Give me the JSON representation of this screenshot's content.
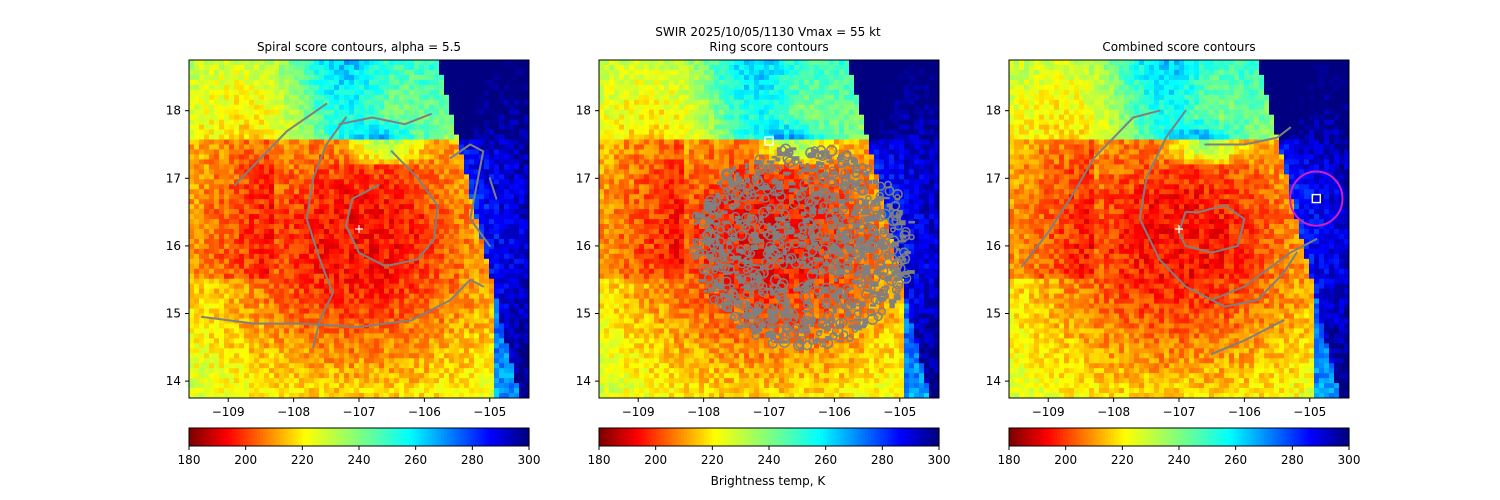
{
  "figure": {
    "suptitle_line1": "SWIR  2025/10/05/1130    Vmax = 55 kt"
  },
  "colorbar": {
    "label": "Brightness temp, K",
    "vmin": 180,
    "vmax": 300,
    "ticks": [
      180,
      200,
      220,
      240,
      260,
      280,
      300
    ],
    "colormap": "jet_r"
  },
  "chart_data": [
    {
      "type": "heatmap",
      "title": "Spiral score contours, alpha =  5.5",
      "xlim": [
        -109.6,
        -104.4
      ],
      "ylim": [
        13.75,
        18.75
      ],
      "xticks": [
        -109,
        -108,
        -107,
        -106,
        -105
      ],
      "yticks": [
        14,
        15,
        16,
        17,
        18
      ],
      "grid": false,
      "center_marker": {
        "symbol": "+",
        "lon": -107.0,
        "lat": 16.25,
        "color": "#ffffff"
      },
      "contours": [
        {
          "color": "#808080",
          "points": [
            [
              -108.9,
              16.9
            ],
            [
              -108.5,
              17.3
            ],
            [
              -108.1,
              17.7
            ],
            [
              -107.8,
              17.9
            ],
            [
              -107.5,
              18.1
            ]
          ]
        },
        {
          "color": "#808080",
          "points": [
            [
              -107.2,
              17.9
            ],
            [
              -107.5,
              17.5
            ],
            [
              -107.7,
              17.0
            ],
            [
              -107.8,
              16.4
            ],
            [
              -107.6,
              15.8
            ],
            [
              -107.4,
              15.3
            ],
            [
              -107.6,
              14.9
            ],
            [
              -107.7,
              14.5
            ]
          ]
        },
        {
          "color": "#808080",
          "points": [
            [
              -107.3,
              17.8
            ],
            [
              -106.8,
              17.9
            ],
            [
              -106.3,
              17.8
            ],
            [
              -105.9,
              17.95
            ]
          ]
        },
        {
          "color": "#808080",
          "points": [
            [
              -106.5,
              17.4
            ],
            [
              -106.1,
              17.0
            ],
            [
              -105.8,
              16.6
            ],
            [
              -105.85,
              16.1
            ],
            [
              -106.1,
              15.8
            ],
            [
              -106.6,
              15.7
            ],
            [
              -107.0,
              15.9
            ],
            [
              -107.2,
              16.3
            ],
            [
              -107.1,
              16.7
            ],
            [
              -106.7,
              16.9
            ]
          ]
        },
        {
          "color": "#808080",
          "points": [
            [
              -105.6,
              17.3
            ],
            [
              -105.3,
              17.5
            ],
            [
              -105.1,
              17.4
            ],
            [
              -105.2,
              16.9
            ],
            [
              -105.3,
              16.4
            ],
            [
              -105.0,
              16.0
            ]
          ]
        },
        {
          "color": "#808080",
          "points": [
            [
              -109.4,
              14.95
            ],
            [
              -108.6,
              14.85
            ],
            [
              -107.9,
              14.85
            ],
            [
              -107.0,
              14.8
            ],
            [
              -106.2,
              14.9
            ],
            [
              -105.6,
              15.2
            ],
            [
              -105.3,
              15.5
            ],
            [
              -105.1,
              15.4
            ]
          ]
        },
        {
          "color": "#808080",
          "points": [
            [
              -105.0,
              17.0
            ],
            [
              -104.9,
              16.7
            ]
          ]
        }
      ]
    },
    {
      "type": "heatmap",
      "title": "Ring score contours",
      "xlim": [
        -109.6,
        -104.4
      ],
      "ylim": [
        13.75,
        18.75
      ],
      "xticks": [
        -109,
        -108,
        -107,
        -106,
        -105
      ],
      "yticks": [
        14,
        15,
        16,
        17,
        18
      ],
      "grid": false,
      "square_marker": {
        "symbol": "square",
        "lon": -107.0,
        "lat": 17.55,
        "color": "#ffffff"
      },
      "ring_region": {
        "color": "#808080",
        "center_lon": -106.5,
        "center_lat": 16.0,
        "notes": "dense contour clutter"
      }
    },
    {
      "type": "heatmap",
      "title": "Combined score contours",
      "xlim": [
        -109.6,
        -104.4
      ],
      "ylim": [
        13.75,
        18.75
      ],
      "xticks": [
        -109,
        -108,
        -107,
        -106,
        -105
      ],
      "yticks": [
        14,
        15,
        16,
        17,
        18
      ],
      "grid": false,
      "center_marker": {
        "symbol": "+",
        "lon": -107.0,
        "lat": 16.25,
        "color": "#ffffff"
      },
      "square_marker": {
        "symbol": "square",
        "lon": -104.9,
        "lat": 16.7,
        "color": "#ffffff"
      },
      "circle": {
        "lon": -104.9,
        "lat": 16.7,
        "radius_deg": 0.4,
        "color": "#d020c0"
      },
      "contours": [
        {
          "color": "#808080",
          "points": [
            [
              -109.4,
              15.7
            ],
            [
              -109.0,
              16.2
            ],
            [
              -108.6,
              16.8
            ],
            [
              -108.3,
              17.3
            ],
            [
              -108.0,
              17.6
            ],
            [
              -107.7,
              17.9
            ],
            [
              -107.3,
              18.0
            ]
          ]
        },
        {
          "color": "#808080",
          "points": [
            [
              -106.9,
              18.0
            ],
            [
              -107.2,
              17.6
            ],
            [
              -107.5,
              17.0
            ],
            [
              -107.6,
              16.4
            ],
            [
              -107.3,
              15.8
            ],
            [
              -106.9,
              15.4
            ],
            [
              -106.3,
              15.1
            ],
            [
              -105.8,
              15.2
            ],
            [
              -105.4,
              15.6
            ],
            [
              -105.2,
              15.9
            ]
          ]
        },
        {
          "color": "#808080",
          "points": [
            [
              -106.7,
              16.5
            ],
            [
              -106.3,
              16.6
            ],
            [
              -106.0,
              16.4
            ],
            [
              -106.1,
              16.0
            ],
            [
              -106.5,
              15.9
            ],
            [
              -106.9,
              16.0
            ],
            [
              -107.0,
              16.2
            ],
            [
              -106.9,
              16.5
            ],
            [
              -106.7,
              16.5
            ]
          ]
        },
        {
          "color": "#808080",
          "points": [
            [
              -106.6,
              17.5
            ],
            [
              -106.0,
              17.5
            ],
            [
              -105.5,
              17.6
            ],
            [
              -105.3,
              17.75
            ]
          ]
        },
        {
          "color": "#808080",
          "points": [
            [
              -106.5,
              15.2
            ],
            [
              -106.0,
              15.4
            ],
            [
              -105.3,
              15.9
            ],
            [
              -104.9,
              16.1
            ]
          ]
        },
        {
          "color": "#808080",
          "points": [
            [
              -106.5,
              14.4
            ],
            [
              -106.0,
              14.6
            ],
            [
              -105.6,
              14.8
            ],
            [
              -105.4,
              14.9
            ]
          ]
        }
      ]
    }
  ]
}
